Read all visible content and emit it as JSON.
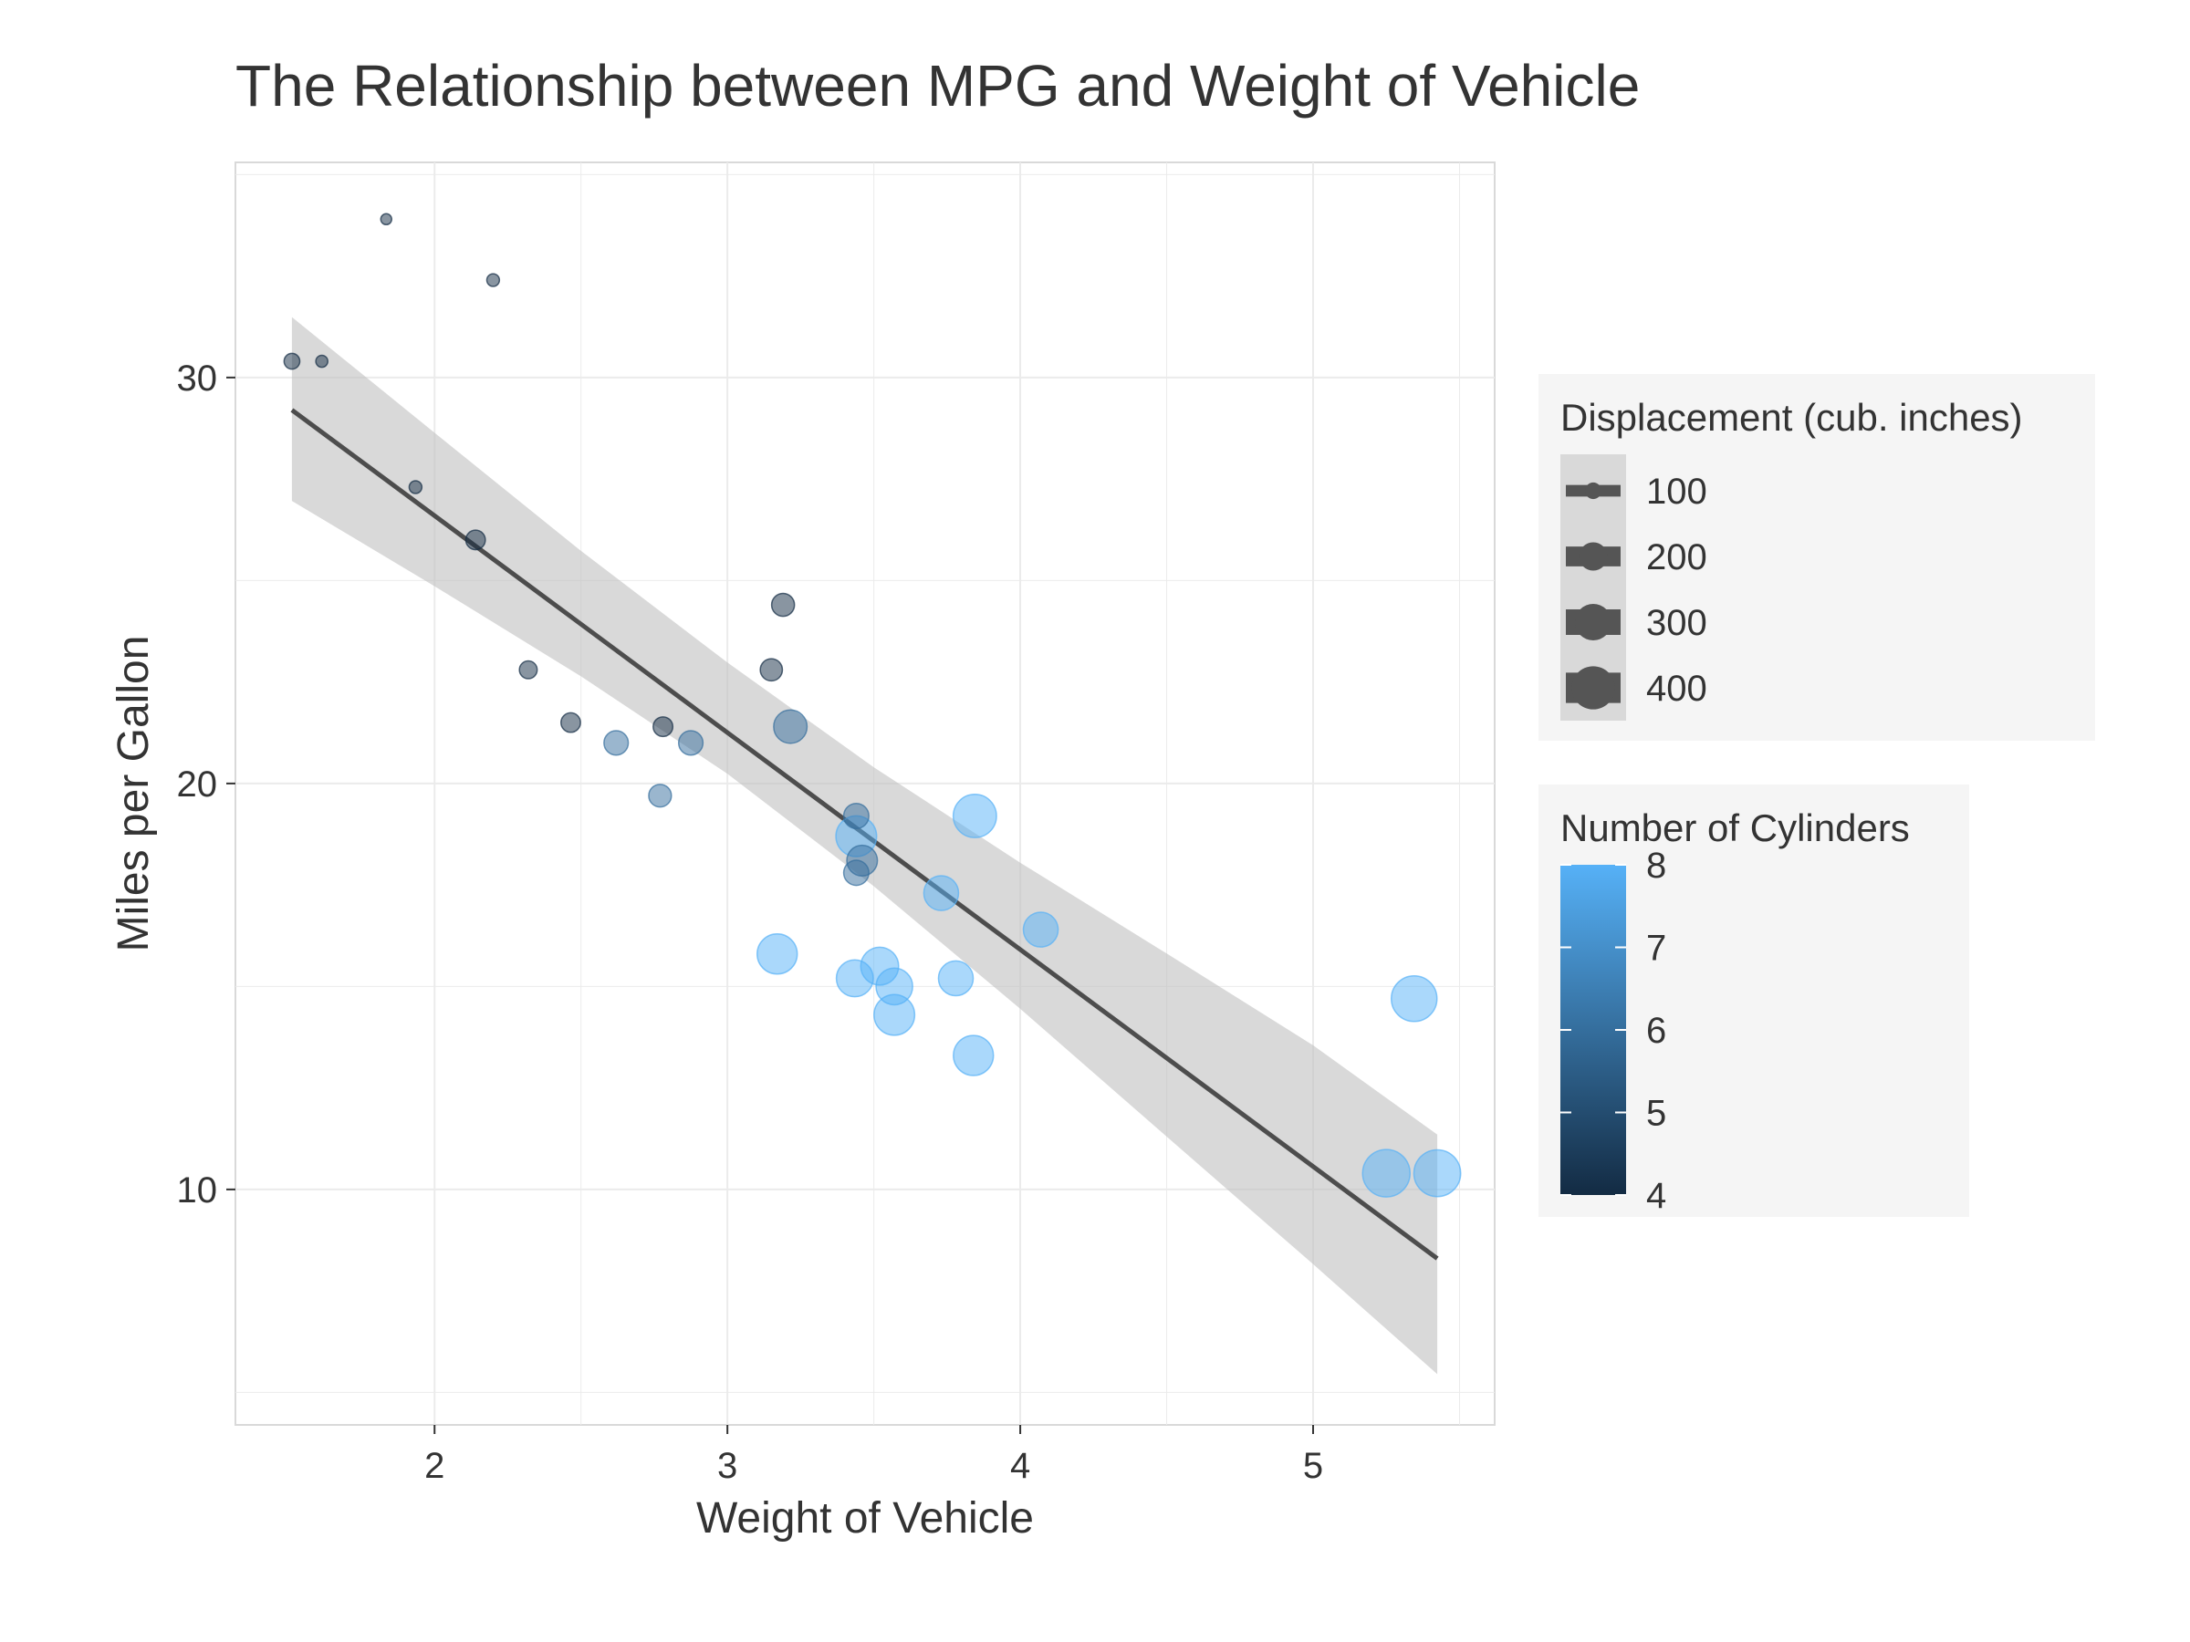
{
  "chart_data": {
    "type": "scatter",
    "title": "The Relationship between MPG and Weight of Vehicle",
    "xlabel": "Weight of Vehicle",
    "ylabel": "Miles per Gallon",
    "xlim": [
      1.32,
      5.62
    ],
    "ylim": [
      4.2,
      35.3
    ],
    "x_ticks": [
      2,
      3,
      4,
      5
    ],
    "y_ticks": [
      10,
      20,
      30
    ],
    "grid": true,
    "colors": {
      "low": "#132B43",
      "high": "#56B1F7",
      "fit_line": "#4d4d4d",
      "confidence_band": "#bfbfbf",
      "panel_border": "#d9d9d9",
      "grid": "#ebebeb",
      "legend_background": "#f5f5f5"
    },
    "series": [
      {
        "points": [
          {
            "x": 2.62,
            "y": 21.0,
            "cyl": 6,
            "disp": 160
          },
          {
            "x": 2.875,
            "y": 21.0,
            "cyl": 6,
            "disp": 160
          },
          {
            "x": 2.32,
            "y": 22.8,
            "cyl": 4,
            "disp": 108
          },
          {
            "x": 3.215,
            "y": 21.4,
            "cyl": 6,
            "disp": 258
          },
          {
            "x": 3.44,
            "y": 18.7,
            "cyl": 8,
            "disp": 360
          },
          {
            "x": 3.46,
            "y": 18.1,
            "cyl": 6,
            "disp": 225
          },
          {
            "x": 3.57,
            "y": 14.3,
            "cyl": 8,
            "disp": 360
          },
          {
            "x": 3.19,
            "y": 24.4,
            "cyl": 4,
            "disp": 146.7
          },
          {
            "x": 3.15,
            "y": 22.8,
            "cyl": 4,
            "disp": 140.8
          },
          {
            "x": 3.44,
            "y": 19.2,
            "cyl": 6,
            "disp": 167.6
          },
          {
            "x": 3.44,
            "y": 17.8,
            "cyl": 6,
            "disp": 167.6
          },
          {
            "x": 4.07,
            "y": 16.4,
            "cyl": 8,
            "disp": 275.8
          },
          {
            "x": 3.73,
            "y": 17.3,
            "cyl": 8,
            "disp": 275.8
          },
          {
            "x": 3.78,
            "y": 15.2,
            "cyl": 8,
            "disp": 275.8
          },
          {
            "x": 5.25,
            "y": 10.4,
            "cyl": 8,
            "disp": 472
          },
          {
            "x": 5.424,
            "y": 10.4,
            "cyl": 8,
            "disp": 460
          },
          {
            "x": 5.345,
            "y": 14.7,
            "cyl": 8,
            "disp": 440
          },
          {
            "x": 2.2,
            "y": 32.4,
            "cyl": 4,
            "disp": 78.7
          },
          {
            "x": 1.615,
            "y": 30.4,
            "cyl": 4,
            "disp": 75.7
          },
          {
            "x": 1.835,
            "y": 33.9,
            "cyl": 4,
            "disp": 71.1
          },
          {
            "x": 2.465,
            "y": 21.5,
            "cyl": 4,
            "disp": 120.1
          },
          {
            "x": 3.52,
            "y": 15.5,
            "cyl": 8,
            "disp": 318
          },
          {
            "x": 3.435,
            "y": 15.2,
            "cyl": 8,
            "disp": 304
          },
          {
            "x": 3.84,
            "y": 13.3,
            "cyl": 8,
            "disp": 350
          },
          {
            "x": 3.845,
            "y": 19.2,
            "cyl": 8,
            "disp": 400
          },
          {
            "x": 1.935,
            "y": 27.3,
            "cyl": 4,
            "disp": 79
          },
          {
            "x": 2.14,
            "y": 26.0,
            "cyl": 4,
            "disp": 120.3
          },
          {
            "x": 1.513,
            "y": 30.4,
            "cyl": 4,
            "disp": 95.1
          },
          {
            "x": 3.17,
            "y": 15.8,
            "cyl": 8,
            "disp": 351
          },
          {
            "x": 2.77,
            "y": 19.7,
            "cyl": 6,
            "disp": 145
          },
          {
            "x": 3.57,
            "y": 15.0,
            "cyl": 8,
            "disp": 301
          },
          {
            "x": 2.78,
            "y": 21.4,
            "cyl": 4,
            "disp": 121
          }
        ]
      }
    ],
    "fit": {
      "method": "lm",
      "intercept": 37.285,
      "slope": -5.344,
      "band": [
        {
          "x": 1.513,
          "lo": 26.96,
          "hi": 31.49
        },
        {
          "x": 2.0,
          "lo": 24.86,
          "hi": 28.64
        },
        {
          "x": 2.5,
          "lo": 22.64,
          "hi": 25.73
        },
        {
          "x": 3.0,
          "lo": 20.24,
          "hi": 22.98
        },
        {
          "x": 3.5,
          "lo": 17.47,
          "hi": 20.4
        },
        {
          "x": 4.0,
          "lo": 14.45,
          "hi": 18.05
        },
        {
          "x": 4.5,
          "lo": 11.3,
          "hi": 15.81
        },
        {
          "x": 5.0,
          "lo": 8.16,
          "hi": 13.55
        },
        {
          "x": 5.424,
          "lo": 5.45,
          "hi": 11.35
        }
      ]
    },
    "legend_size": {
      "title": "Displacement (cub. inches)",
      "position": "right",
      "entries": [
        {
          "label": "100",
          "value": 100
        },
        {
          "label": "200",
          "value": 200
        },
        {
          "label": "300",
          "value": 300
        },
        {
          "label": "400",
          "value": 400
        }
      ],
      "range": [
        71.1,
        472
      ]
    },
    "legend_color": {
      "title": "Number of Cylinders",
      "position": "right",
      "range": [
        4,
        8
      ],
      "ticks": [
        {
          "label": "8",
          "value": 8
        },
        {
          "label": "7",
          "value": 7
        },
        {
          "label": "6",
          "value": 6
        },
        {
          "label": "5",
          "value": 5
        },
        {
          "label": "4",
          "value": 4
        }
      ]
    }
  }
}
